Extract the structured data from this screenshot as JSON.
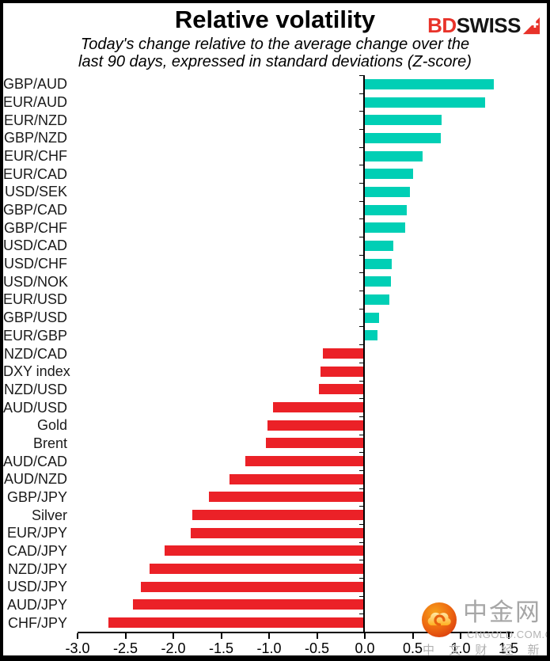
{
  "header": {
    "title": "Relative volatility",
    "subtitle_line1": "Today's change relative to the average change over the",
    "subtitle_line2": "last 90 days, expressed in standard deviations (Z-score)"
  },
  "logo": {
    "bd": "BD",
    "swiss": "SWISS",
    "bd_color": "#e8332a",
    "swiss_color": "#141414",
    "arrow_icon": "bdswiss-arrow-swiss-cross"
  },
  "watermark": {
    "logo_icon": "cngold-cloud-logo",
    "site_name": "中金网",
    "domain": "CNGOLD.COM.CN",
    "tagline": "中 文 财 经 新 媒 体"
  },
  "chart_data": {
    "type": "bar",
    "orientation": "horizontal",
    "title": "Relative volatility",
    "xlabel": "",
    "ylabel": "",
    "grid": false,
    "legend": false,
    "xlim": [
      -3.0,
      1.5
    ],
    "categories": [
      "GBP/AUD",
      "EUR/AUD",
      "EUR/NZD",
      "GBP/NZD",
      "EUR/CHF",
      "EUR/CAD",
      "USD/SEK",
      "GBP/CAD",
      "GBP/CHF",
      "USD/CAD",
      "USD/CHF",
      "USD/NOK",
      "EUR/USD",
      "GBP/USD",
      "EUR/GBP",
      "NZD/CAD",
      "DXY index",
      "NZD/USD",
      "AUD/USD",
      "Gold",
      "Brent",
      "AUD/CAD",
      "AUD/NZD",
      "GBP/JPY",
      "Silver",
      "EUR/JPY",
      "CAD/JPY",
      "NZD/JPY",
      "USD/JPY",
      "AUD/JPY",
      "CHF/JPY"
    ],
    "values": [
      1.35,
      1.26,
      0.8,
      0.79,
      0.6,
      0.5,
      0.47,
      0.44,
      0.42,
      0.3,
      0.28,
      0.27,
      0.26,
      0.15,
      0.13,
      -0.44,
      -0.46,
      -0.48,
      -0.96,
      -1.02,
      -1.03,
      -1.25,
      -1.41,
      -1.63,
      -1.8,
      -1.82,
      -2.09,
      -2.25,
      -2.34,
      -2.42,
      -2.68
    ],
    "x_ticks": [
      -3.0,
      -2.5,
      -2.0,
      -1.5,
      -1.0,
      -0.5,
      0.0,
      0.5,
      1.0,
      1.5
    ],
    "x_tick_labels": [
      "-3.0",
      "-2.5",
      "-2.0",
      "-1.5",
      "-1.0",
      "-0.5",
      "0.0",
      "0.5",
      "1.0",
      "1.5"
    ],
    "positive_color": "#00cfb5",
    "negative_color": "#eb2127",
    "axis_color": "#000000"
  }
}
